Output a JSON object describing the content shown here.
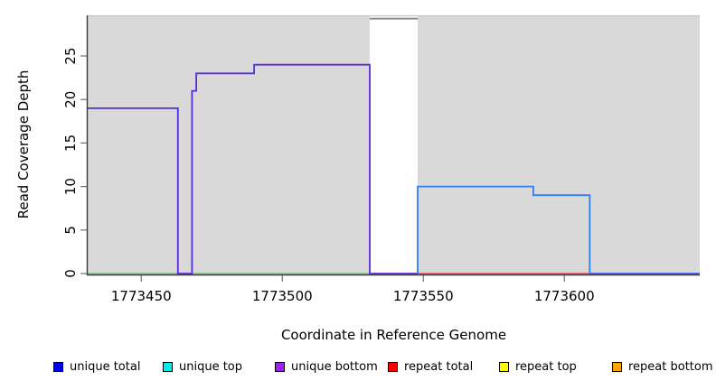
{
  "figure": {
    "xlabel": "Coordinate in Reference Genome",
    "ylabel": "Read Coverage Depth"
  },
  "chart_data": {
    "type": "line",
    "subtype": "step-coverage",
    "title": "",
    "xlabel": "Coordinate in Reference Genome",
    "ylabel": "Read Coverage Depth",
    "xlim": [
      1773431,
      1773648
    ],
    "ylim": [
      0,
      29.67
    ],
    "x_ticks": [
      1773450,
      1773500,
      1773550,
      1773600
    ],
    "x_tick_labels": [
      "1773450",
      "1773500",
      "1773550",
      "1773600"
    ],
    "y_ticks": [
      0,
      5,
      10,
      15,
      20,
      25
    ],
    "y_tick_labels": [
      "0",
      "5",
      "10",
      "15",
      "20",
      "25"
    ],
    "grid": false,
    "panel_color": "#d9d9d9",
    "panel_top_edge_color": "#c4c4c4",
    "panel_regions_x": [
      [
        1773431,
        1773531
      ],
      [
        1773548,
        1773648
      ]
    ],
    "gap_region_x": [
      1773531,
      1773548
    ],
    "axis_color": "#3a3a3a",
    "tick_color": "#6e6e6e",
    "series": [
      {
        "name": "zero-line-left-green",
        "color": "#7cbe7c",
        "width": 1.4,
        "points": [
          [
            1773431,
            0
          ],
          [
            1773531,
            0
          ]
        ]
      },
      {
        "name": "zero-line-mid-red",
        "color": "#e0444e",
        "width": 1.4,
        "points": [
          [
            1773548,
            0
          ],
          [
            1773609,
            0
          ]
        ]
      },
      {
        "name": "clipped-total-gray",
        "color": "#8a8a8a",
        "width": 2,
        "points": [
          [
            1773531,
            29.3
          ],
          [
            1773548,
            29.3
          ]
        ]
      },
      {
        "name": "unique-bottom-step",
        "color": "#5a2bdc",
        "width": 1.8,
        "points": [
          [
            1773431,
            19
          ],
          [
            1773463,
            19
          ],
          [
            1773463,
            0
          ],
          [
            1773468,
            0
          ],
          [
            1773468,
            21
          ],
          [
            1773469.5,
            21
          ],
          [
            1773469.5,
            23
          ],
          [
            1773490,
            23
          ],
          [
            1773490,
            24
          ],
          [
            1773531,
            24
          ],
          [
            1773531,
            0
          ],
          [
            1773548,
            0
          ]
        ]
      },
      {
        "name": "unique-total-step",
        "color": "#2e7ef6",
        "width": 1.8,
        "points": [
          [
            1773548,
            0
          ],
          [
            1773548,
            10
          ],
          [
            1773589,
            10
          ],
          [
            1773589,
            9
          ],
          [
            1773609,
            9
          ],
          [
            1773609,
            0
          ],
          [
            1773648,
            0
          ]
        ]
      },
      {
        "name": "zero-line-right-overlap",
        "color": "#5757e8",
        "width": 1.6,
        "points": [
          [
            1773609,
            0
          ],
          [
            1773648,
            0
          ]
        ]
      }
    ],
    "legend_position": "bottom",
    "legend": [
      {
        "label": "unique total",
        "color": "#0000ee"
      },
      {
        "label": "unique top",
        "color": "#00eeee"
      },
      {
        "label": "unique bottom",
        "color": "#a020f0"
      },
      {
        "label": "repeat total",
        "color": "#ff0000"
      },
      {
        "label": "repeat top",
        "color": "#ffff00"
      },
      {
        "label": "repeat bottom",
        "color": "#ffa500"
      }
    ]
  }
}
